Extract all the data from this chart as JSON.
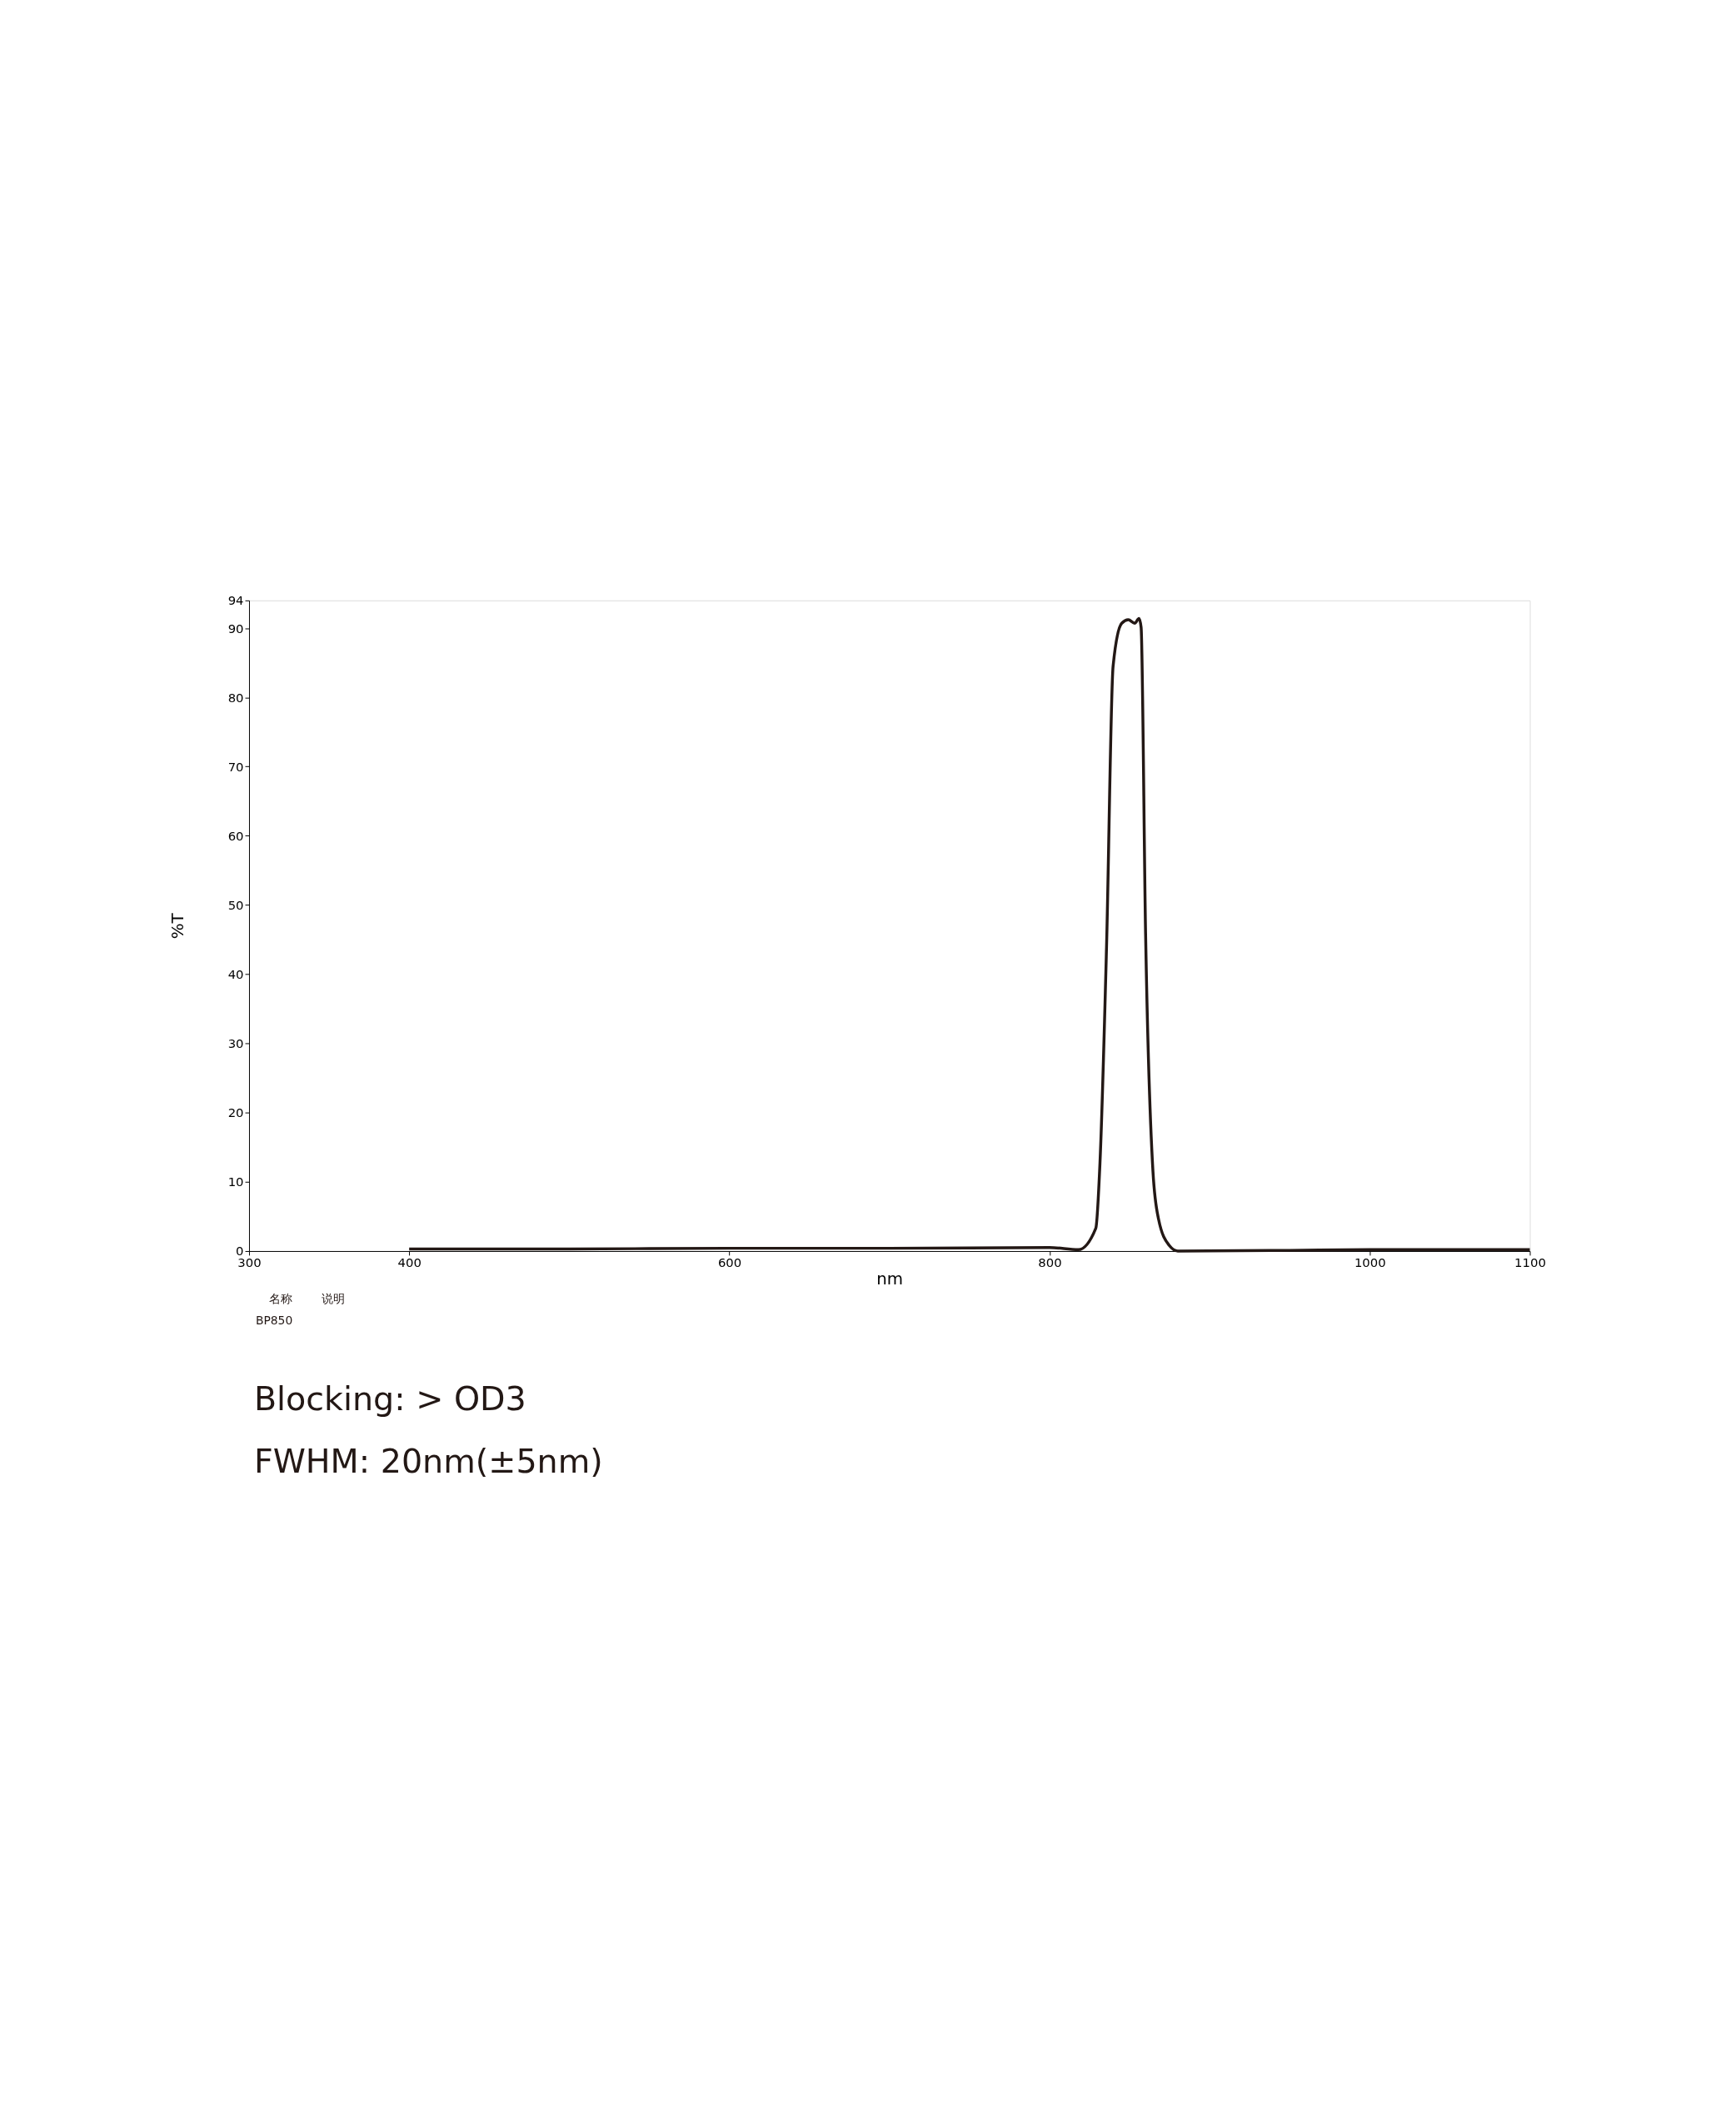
{
  "chart_data": {
    "type": "line",
    "xlabel": "nm",
    "ylabel": "%T",
    "x": [
      400,
      500,
      600,
      700,
      800,
      818,
      828.9,
      831.5,
      835.6,
      839.7,
      845.1,
      849.2,
      853.2,
      855.9,
      857.2,
      860.0,
      864.6,
      868.1,
      874.8,
      880.1,
      950,
      1000,
      1100
    ],
    "series": [
      {
        "color": "#231815",
        "values": [
          0.3,
          0.3,
          0.4,
          0.4,
          0.5,
          0.2,
          3.3,
          12.7,
          43.9,
          84.5,
          90.7,
          91.2,
          90.7,
          91.4,
          90.1,
          45.8,
          11.5,
          4.6,
          0.8,
          0,
          0.1,
          0.2,
          0.2
        ]
      }
    ],
    "xlim": [
      300,
      1100
    ],
    "xticks": [
      300,
      400,
      600,
      800,
      1000,
      1100
    ],
    "ylim": [
      0,
      94
    ],
    "yticks": [
      0,
      10,
      20,
      30,
      40,
      50,
      60,
      70,
      80,
      90,
      94
    ],
    "grid": false,
    "marker": "none",
    "line_style": "solid",
    "annotations": [
      "名称",
      "说明",
      "BP850",
      "Blocking:  > OD3",
      "FWHM:  20nm(±5nm)"
    ]
  }
}
